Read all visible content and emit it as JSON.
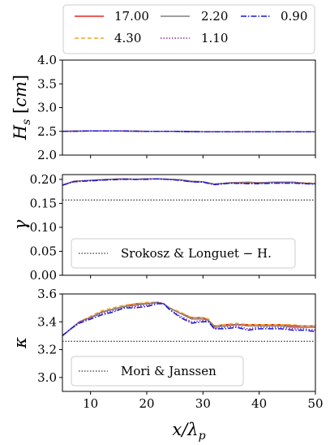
{
  "chart_data": [
    {
      "type": "line",
      "ylabel": "H_s [cm]",
      "ylim": [
        2.0,
        4.0
      ],
      "yticks": [
        "2.0",
        "2.5",
        "3.0",
        "3.5",
        "4.0"
      ],
      "xlim": [
        5,
        50
      ],
      "series": [
        {
          "name": "17.00",
          "color": "#e8261e",
          "dash": "solid",
          "x": [
            5,
            10,
            15,
            20,
            25,
            30,
            35,
            40,
            45,
            50
          ],
          "y": [
            2.5,
            2.51,
            2.51,
            2.5,
            2.5,
            2.49,
            2.49,
            2.49,
            2.49,
            2.49
          ]
        },
        {
          "name": "4.30",
          "color": "#f4a52a",
          "dash": "dashed",
          "x": [
            5,
            10,
            15,
            20,
            25,
            30,
            35,
            40,
            45,
            50
          ],
          "y": [
            2.5,
            2.51,
            2.51,
            2.5,
            2.5,
            2.49,
            2.49,
            2.49,
            2.49,
            2.49
          ]
        },
        {
          "name": "2.20",
          "color": "#808080",
          "dash": "solid",
          "x": [
            5,
            10,
            15,
            20,
            25,
            30,
            35,
            40,
            45,
            50
          ],
          "y": [
            2.5,
            2.51,
            2.51,
            2.5,
            2.5,
            2.49,
            2.49,
            2.49,
            2.49,
            2.49
          ]
        },
        {
          "name": "1.10",
          "color": "#8e2c9b",
          "dash": "dotted",
          "x": [
            5,
            10,
            15,
            20,
            25,
            30,
            35,
            40,
            45,
            50
          ],
          "y": [
            2.5,
            2.51,
            2.51,
            2.5,
            2.5,
            2.49,
            2.49,
            2.49,
            2.49,
            2.49
          ]
        },
        {
          "name": "0.90",
          "color": "#1616d9",
          "dash": "dashdot",
          "x": [
            5,
            10,
            15,
            20,
            25,
            30,
            35,
            40,
            45,
            50
          ],
          "y": [
            2.5,
            2.51,
            2.51,
            2.5,
            2.5,
            2.49,
            2.49,
            2.49,
            2.49,
            2.49
          ]
        }
      ]
    },
    {
      "type": "line",
      "ylabel": "γ",
      "ylim": [
        0.0,
        0.21
      ],
      "yticks": [
        "0.00",
        "0.05",
        "0.10",
        "0.15",
        "0.20"
      ],
      "xlim": [
        5,
        50
      ],
      "reference": {
        "label": "Srokosz & Longuet − H.",
        "value": 0.157
      },
      "series": [
        {
          "name": "17.00",
          "color": "#e8261e",
          "dash": "solid",
          "x": [
            5,
            7,
            10,
            13,
            16,
            18,
            20,
            22,
            24,
            26,
            28,
            30,
            32,
            35,
            38,
            40,
            43,
            46,
            48,
            50
          ],
          "y": [
            0.188,
            0.196,
            0.198,
            0.2,
            0.201,
            0.2,
            0.201,
            0.201,
            0.2,
            0.199,
            0.196,
            0.195,
            0.19,
            0.193,
            0.194,
            0.193,
            0.194,
            0.194,
            0.192,
            0.191
          ]
        },
        {
          "name": "4.30",
          "color": "#f4a52a",
          "dash": "dashed",
          "x": [
            5,
            7,
            10,
            13,
            16,
            18,
            20,
            22,
            24,
            26,
            28,
            30,
            32,
            35,
            38,
            40,
            43,
            46,
            48,
            50
          ],
          "y": [
            0.188,
            0.196,
            0.198,
            0.2,
            0.201,
            0.2,
            0.201,
            0.201,
            0.2,
            0.199,
            0.196,
            0.195,
            0.19,
            0.193,
            0.194,
            0.193,
            0.194,
            0.194,
            0.193,
            0.192
          ]
        },
        {
          "name": "2.20",
          "color": "#808080",
          "dash": "solid",
          "x": [
            5,
            7,
            10,
            13,
            16,
            18,
            20,
            22,
            24,
            26,
            28,
            30,
            32,
            35,
            38,
            40,
            43,
            46,
            48,
            50
          ],
          "y": [
            0.188,
            0.196,
            0.198,
            0.2,
            0.201,
            0.2,
            0.201,
            0.201,
            0.2,
            0.199,
            0.196,
            0.195,
            0.19,
            0.193,
            0.193,
            0.193,
            0.194,
            0.194,
            0.192,
            0.191
          ]
        },
        {
          "name": "1.10",
          "color": "#8e2c9b",
          "dash": "dotted",
          "x": [
            5,
            7,
            10,
            13,
            16,
            18,
            20,
            22,
            24,
            26,
            28,
            30,
            32,
            35,
            38,
            40,
            43,
            46,
            48,
            50
          ],
          "y": [
            0.188,
            0.196,
            0.198,
            0.199,
            0.201,
            0.2,
            0.201,
            0.201,
            0.2,
            0.199,
            0.195,
            0.195,
            0.19,
            0.192,
            0.192,
            0.192,
            0.193,
            0.193,
            0.192,
            0.191
          ]
        },
        {
          "name": "0.90",
          "color": "#1616d9",
          "dash": "dashdot",
          "x": [
            5,
            7,
            10,
            13,
            16,
            18,
            20,
            22,
            24,
            26,
            28,
            30,
            32,
            35,
            38,
            40,
            43,
            46,
            48,
            50
          ],
          "y": [
            0.188,
            0.195,
            0.197,
            0.199,
            0.2,
            0.2,
            0.2,
            0.201,
            0.2,
            0.198,
            0.195,
            0.194,
            0.189,
            0.192,
            0.191,
            0.191,
            0.192,
            0.192,
            0.191,
            0.19
          ]
        }
      ]
    },
    {
      "type": "line",
      "ylabel": "κ",
      "ylim": [
        2.9,
        3.6
      ],
      "yticks": [
        "3.0",
        "3.2",
        "3.4",
        "3.6"
      ],
      "xlim": [
        5,
        50
      ],
      "xlabel": "x/λ_p",
      "xticks": [
        "10",
        "20",
        "30",
        "40",
        "50"
      ],
      "reference": {
        "label": "Mori & Janssen",
        "value": 3.26
      },
      "series": [
        {
          "name": "17.00",
          "color": "#e8261e",
          "dash": "solid",
          "x": [
            5,
            6.5,
            8,
            10,
            12,
            14,
            16,
            18,
            20,
            22,
            23,
            24,
            26,
            28,
            30,
            31,
            32,
            34,
            36,
            38,
            40,
            42,
            44,
            46,
            48,
            50
          ],
          "y": [
            3.3,
            3.35,
            3.4,
            3.43,
            3.47,
            3.49,
            3.51,
            3.53,
            3.53,
            3.54,
            3.53,
            3.5,
            3.46,
            3.43,
            3.43,
            3.41,
            3.37,
            3.38,
            3.38,
            3.38,
            3.38,
            3.38,
            3.38,
            3.37,
            3.37,
            3.37
          ]
        },
        {
          "name": "4.30",
          "color": "#f4a52a",
          "dash": "dashed",
          "x": [
            5,
            6.5,
            8,
            10,
            12,
            14,
            16,
            18,
            20,
            22,
            23,
            24,
            26,
            28,
            30,
            31,
            32,
            34,
            36,
            38,
            40,
            42,
            44,
            46,
            48,
            50
          ],
          "y": [
            3.3,
            3.35,
            3.4,
            3.44,
            3.48,
            3.5,
            3.52,
            3.53,
            3.54,
            3.54,
            3.53,
            3.5,
            3.47,
            3.43,
            3.43,
            3.42,
            3.37,
            3.38,
            3.39,
            3.38,
            3.38,
            3.38,
            3.38,
            3.38,
            3.37,
            3.37
          ]
        },
        {
          "name": "2.20",
          "color": "#808080",
          "dash": "solid",
          "x": [
            5,
            6.5,
            8,
            10,
            12,
            14,
            16,
            18,
            20,
            22,
            23,
            24,
            26,
            28,
            30,
            31,
            32,
            34,
            36,
            38,
            40,
            42,
            44,
            46,
            48,
            50
          ],
          "y": [
            3.3,
            3.35,
            3.4,
            3.43,
            3.47,
            3.49,
            3.51,
            3.52,
            3.53,
            3.54,
            3.53,
            3.5,
            3.46,
            3.42,
            3.42,
            3.41,
            3.36,
            3.37,
            3.38,
            3.37,
            3.37,
            3.37,
            3.37,
            3.36,
            3.36,
            3.36
          ]
        },
        {
          "name": "1.10",
          "color": "#8e2c9b",
          "dash": "dotted",
          "x": [
            5,
            6.5,
            8,
            10,
            12,
            14,
            16,
            18,
            20,
            22,
            23,
            24,
            26,
            28,
            30,
            31,
            32,
            34,
            36,
            38,
            40,
            42,
            44,
            46,
            48,
            50
          ],
          "y": [
            3.3,
            3.35,
            3.4,
            3.43,
            3.46,
            3.48,
            3.5,
            3.51,
            3.52,
            3.54,
            3.53,
            3.49,
            3.44,
            3.4,
            3.41,
            3.4,
            3.35,
            3.36,
            3.37,
            3.35,
            3.36,
            3.36,
            3.36,
            3.35,
            3.35,
            3.34
          ]
        },
        {
          "name": "0.90",
          "color": "#1616d9",
          "dash": "dashdot",
          "x": [
            5,
            6.5,
            8,
            10,
            12,
            14,
            16,
            18,
            20,
            22,
            23,
            24,
            26,
            28,
            30,
            31,
            32,
            34,
            36,
            38,
            40,
            42,
            44,
            46,
            48,
            50
          ],
          "y": [
            3.3,
            3.35,
            3.39,
            3.42,
            3.45,
            3.47,
            3.5,
            3.5,
            3.51,
            3.53,
            3.53,
            3.49,
            3.43,
            3.39,
            3.4,
            3.4,
            3.35,
            3.35,
            3.36,
            3.34,
            3.35,
            3.35,
            3.35,
            3.34,
            3.34,
            3.33
          ]
        }
      ]
    }
  ],
  "legend": {
    "entries": [
      "17.00",
      "2.20",
      "0.90",
      "4.30",
      "1.10"
    ],
    "placement": "top"
  }
}
